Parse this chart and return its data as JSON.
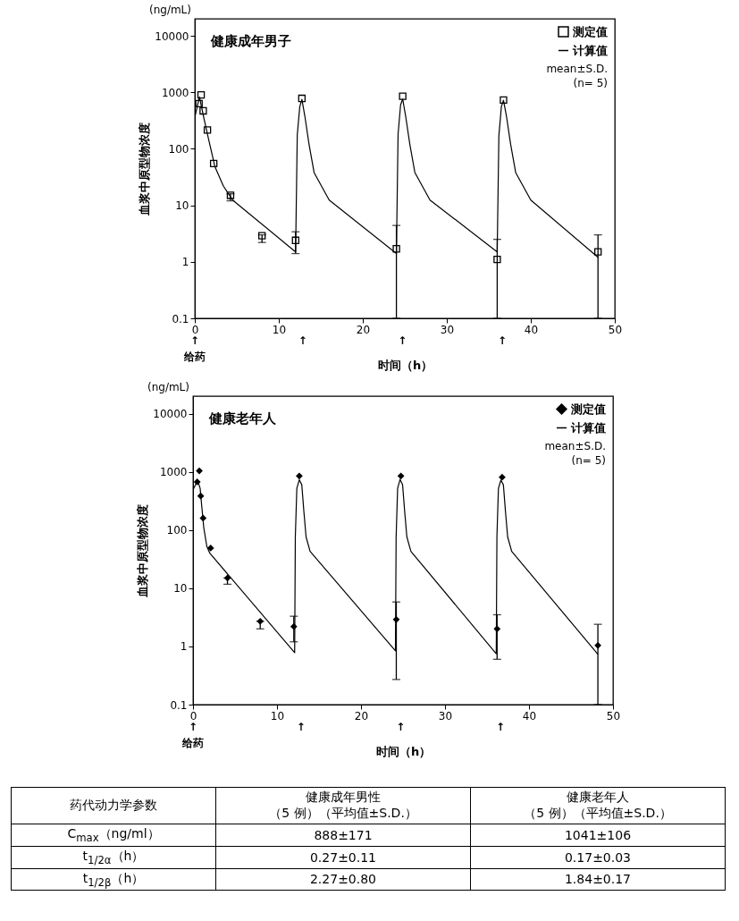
{
  "chart_data": [
    {
      "type": "scatter",
      "title": "健康成年男子",
      "xlabel": "时间（h）",
      "ylabel": "血浆中原型物浓度",
      "log": "y",
      "xlim": [
        0,
        50
      ],
      "ylim": [
        0.1,
        20000
      ],
      "xticks": [
        0,
        10,
        20,
        30,
        40,
        50
      ],
      "yticks": [
        0.1,
        1,
        10,
        100,
        1000,
        10000
      ],
      "grid": false,
      "legend": "top right",
      "annotations": [
        "(ng/mL)",
        "mean±S.D.",
        "(n= 5)",
        "↑\n给药",
        "↑",
        "↑",
        "↑"
      ],
      "series": [
        {
          "name": "测定值",
          "type": "scatter",
          "marker": "square",
          "color": "#000000",
          "x": [
            0.5,
            0.75,
            1,
            1.5,
            2.25,
            4.25,
            8,
            12,
            12.75,
            24,
            24.75,
            36,
            36.75,
            48
          ],
          "values": [
            630,
            900,
            470,
            215,
            55,
            15,
            2.9,
            2.4,
            780,
            1.7,
            850,
            1.1,
            730,
            1.5
          ],
          "errors": [
            null,
            null,
            null,
            null,
            null,
            [
              12,
              16
            ],
            [
              2.2,
              3.0
            ],
            [
              1.4,
              3.4
            ],
            null,
            [
              0.1,
              4.4
            ],
            null,
            [
              0.1,
              2.5
            ],
            null,
            [
              0.1,
              3.0
            ]
          ]
        },
        {
          "name": "计算值",
          "type": "line",
          "color": "#000000",
          "x": [
            0,
            0.55,
            1.1,
            1.7,
            2.4,
            3.4,
            4.5,
            12,
            12.2,
            12.5,
            12.75,
            13.1,
            13.6,
            14.2,
            16,
            24,
            24.2,
            24.5,
            24.75,
            25.1,
            25.6,
            26.2,
            28,
            36,
            36.2,
            36.5,
            36.75,
            37.1,
            37.6,
            38.2,
            40,
            48
          ],
          "values": [
            360,
            830,
            340,
            135,
            48,
            22,
            12.4,
            1.5,
            177,
            560,
            750,
            380,
            120,
            38,
            12.4,
            1.4,
            180,
            600,
            760,
            380,
            120,
            38,
            12.4,
            1.5,
            170,
            560,
            720,
            380,
            120,
            38,
            12.4,
            1.2
          ]
        }
      ]
    },
    {
      "type": "scatter",
      "title": "健康老年人",
      "xlabel": "时间（h）",
      "ylabel": "血浆中原型物浓度",
      "log": "y",
      "xlim": [
        0,
        50
      ],
      "ylim": [
        0.1,
        20000
      ],
      "xticks": [
        0,
        10,
        20,
        30,
        40,
        50
      ],
      "yticks": [
        0.1,
        1,
        10,
        100,
        1000,
        10000
      ],
      "grid": false,
      "legend": "top right",
      "annotations": [
        "(ng/mL)",
        "mean±S.D.",
        "(n= 5)",
        "↑\n给药",
        "↑",
        "↑",
        "↑"
      ],
      "series": [
        {
          "name": "测定值",
          "type": "scatter",
          "marker": "diamond",
          "color": "#000000",
          "x": [
            0.5,
            0.75,
            0.92,
            1.2,
            2.1,
            4.1,
            8,
            12,
            12.65,
            24.2,
            24.75,
            36.2,
            36.8,
            48.2
          ],
          "values": [
            670,
            1040,
            385,
            160,
            49,
            15,
            2.7,
            2.2,
            850,
            2.9,
            850,
            2.0,
            810,
            1.04
          ],
          "errors": [
            null,
            null,
            null,
            null,
            null,
            [
              11.7,
              15
            ],
            [
              2.0,
              2.7
            ],
            [
              1.2,
              3.3
            ],
            null,
            [
              0.27,
              5.8
            ],
            null,
            [
              0.6,
              3.5
            ],
            null,
            [
              0.1,
              2.4
            ]
          ]
        },
        {
          "name": "计算值",
          "type": "line",
          "color": "#000000",
          "x": [
            0,
            0.55,
            0.85,
            1.03,
            1.28,
            1.65,
            2,
            12.1,
            12.18,
            12.36,
            12.65,
            12.95,
            13.2,
            13.46,
            13.94,
            24.1,
            24.18,
            24.36,
            24.65,
            24.95,
            25.2,
            25.46,
            25.94,
            36.1,
            36.18,
            36.36,
            36.65,
            36.95,
            37.2,
            37.46,
            37.94,
            48.17
          ],
          "values": [
            490,
            710,
            520,
            265,
            110,
            52,
            40,
            0.78,
            76,
            520,
            730,
            600,
            206,
            76,
            43,
            0.84,
            76,
            520,
            740,
            600,
            206,
            76,
            43,
            0.75,
            76,
            520,
            720,
            600,
            206,
            76,
            43,
            0.74
          ]
        }
      ]
    },
    {
      "type": "other",
      "annotations": [
        "药代动力学参数",
        "健康成年男性",
        "（5 例）（平均值±S.D.）",
        "健康老年人",
        "（5 例）（平均值±S.D.）",
        "C$_{max}$（ng/ml）",
        "888±171",
        "1041±106",
        "t$_{1/2α}$（h）",
        "0.27±0.11",
        "0.17±0.03",
        "t$_{1/2β}$（h）",
        "2.27±0.80",
        "1.84±0.17"
      ]
    }
  ]
}
